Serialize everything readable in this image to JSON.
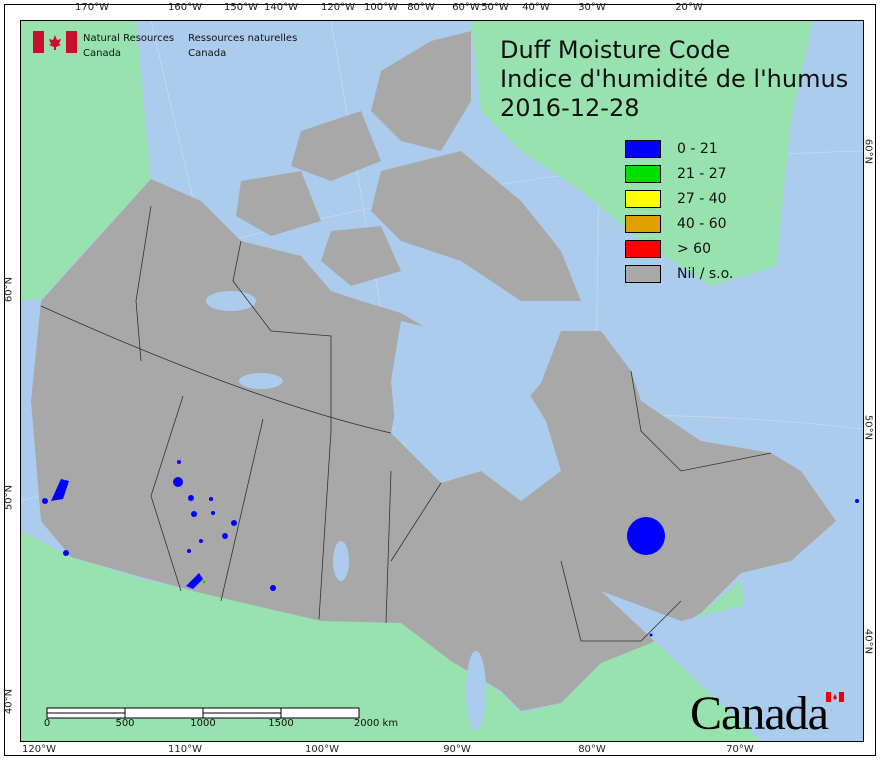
{
  "title": {
    "line1": "Duff Moisture Code",
    "line2": "Indice d'humidité de l'humus",
    "date": "2016-12-28"
  },
  "agency": {
    "en_line1": "Natural Resources",
    "en_line2": "Canada",
    "fr_line1": "Ressources naturelles",
    "fr_line2": "Canada",
    "flag_icon": "canada-flag-icon"
  },
  "wordmark": "Canada",
  "legend": [
    {
      "label": "0 - 21",
      "color": "#0000ff"
    },
    {
      "label": "21 - 27",
      "color": "#00e000"
    },
    {
      "label": "27 - 40",
      "color": "#ffff00"
    },
    {
      "label": "40 - 60",
      "color": "#e0a000"
    },
    {
      "label": "> 60",
      "color": "#ff0000"
    },
    {
      "label": "Nil / s.o.",
      "color": "#a8a8a8"
    }
  ],
  "axes": {
    "top": [
      "170°W",
      "160°W",
      "150°W",
      "140°W",
      "120°W",
      "100°W",
      "80°W",
      "60°W",
      "50°W",
      "40°W",
      "30°W",
      "20°W"
    ],
    "bottom": [
      "120°W",
      "110°W",
      "100°W",
      "90°W",
      "80°W",
      "70°W"
    ],
    "left": [
      "60°N",
      "50°N",
      "40°N"
    ],
    "right": [
      "60°N",
      "50°N",
      "40°N"
    ]
  },
  "scale_bar": {
    "labels": [
      "0",
      "500",
      "1000",
      "1500",
      "2000 km"
    ]
  },
  "colors": {
    "water": "#acccee",
    "canada_nil": "#a8a8a8",
    "other_land": "#98e2b0",
    "dmc_low": "#0000ff"
  }
}
